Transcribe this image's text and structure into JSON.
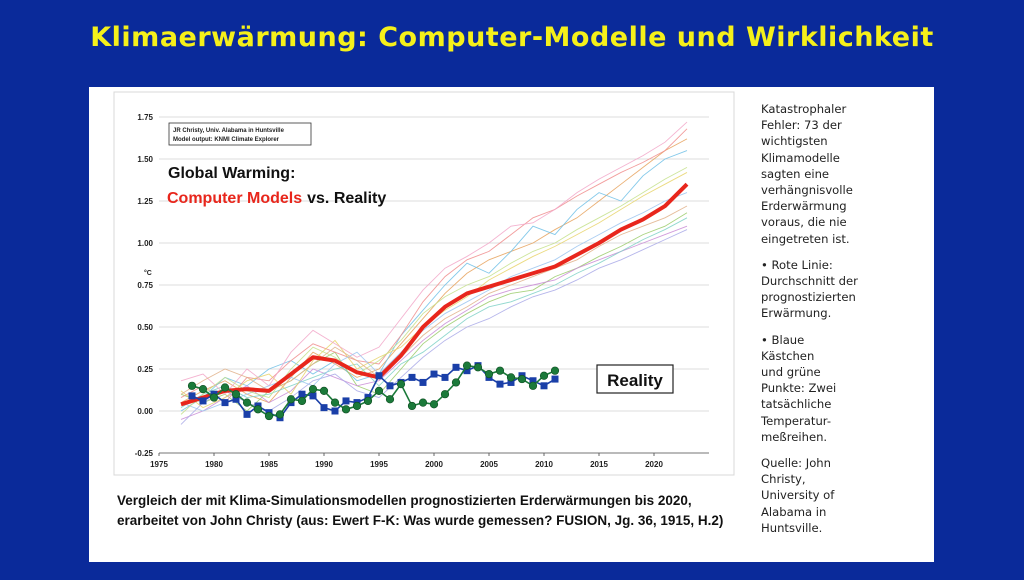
{
  "slide": {
    "title": "Klimaerwärmung: Computer-Modelle und Wirklichkeit"
  },
  "chart_data": {
    "type": "line",
    "source_note": [
      "JR Christy, Univ. Alabama in Huntsville",
      "Model output: KNMI Climate Explorer"
    ],
    "title_line1": "Global Warming:",
    "title_red": "Computer Models",
    "title_rest": "vs. Reality",
    "ylabel": "°C",
    "ylim": [
      -0.25,
      1.75
    ],
    "yticks": [
      "1.75",
      "1.50",
      "1.25",
      "1.00",
      "0.75",
      "0.50",
      "0.25",
      "0.00",
      "-0.25"
    ],
    "yticks_values": [
      1.75,
      1.5,
      1.25,
      1.0,
      0.75,
      0.5,
      0.25,
      0.0,
      -0.25
    ],
    "xlim": [
      1975,
      2025
    ],
    "xticks": [
      "1975",
      "1980",
      "1985",
      "1990",
      "1995",
      "2000",
      "2005",
      "2010",
      "2015",
      "2020"
    ],
    "xticks_values": [
      1975,
      1980,
      1985,
      1990,
      1995,
      2000,
      2005,
      2010,
      2015,
      2020
    ],
    "reality_label": "Reality",
    "series": [
      {
        "name": "Model average (red line)",
        "color": "#e8261c",
        "x": [
          1977,
          1979,
          1981,
          1983,
          1985,
          1987,
          1989,
          1991,
          1993,
          1995,
          1997,
          1999,
          2001,
          2003,
          2005,
          2007,
          2009,
          2011,
          2013,
          2015,
          2017,
          2019,
          2021,
          2023
        ],
        "y": [
          0.04,
          0.08,
          0.12,
          0.13,
          0.12,
          0.22,
          0.32,
          0.3,
          0.23,
          0.2,
          0.33,
          0.5,
          0.62,
          0.7,
          0.74,
          0.78,
          0.82,
          0.86,
          0.93,
          1.0,
          1.08,
          1.14,
          1.22,
          1.35
        ]
      },
      {
        "name": "Balloon observations (blue squares)",
        "color": "#1a3fa8",
        "x": [
          1978,
          1979,
          1980,
          1981,
          1982,
          1983,
          1984,
          1985,
          1986,
          1987,
          1988,
          1989,
          1990,
          1991,
          1992,
          1993,
          1994,
          1995,
          1996,
          1997,
          1998,
          1999,
          2000,
          2001,
          2002,
          2003,
          2004,
          2005,
          2006,
          2007,
          2008,
          2009,
          2010,
          2011
        ],
        "y": [
          0.09,
          0.06,
          0.1,
          0.05,
          0.07,
          -0.02,
          0.03,
          -0.01,
          -0.04,
          0.05,
          0.1,
          0.09,
          0.02,
          0.0,
          0.06,
          0.05,
          0.08,
          0.21,
          0.15,
          0.17,
          0.2,
          0.17,
          0.22,
          0.2,
          0.26,
          0.24,
          0.27,
          0.2,
          0.16,
          0.17,
          0.21,
          0.18,
          0.15,
          0.19
        ]
      },
      {
        "name": "Satellite observations (green dots)",
        "color": "#1b7a3a",
        "x": [
          1978,
          1979,
          1980,
          1981,
          1982,
          1983,
          1984,
          1985,
          1986,
          1987,
          1988,
          1989,
          1990,
          1991,
          1992,
          1993,
          1994,
          1995,
          1996,
          1997,
          1998,
          1999,
          2000,
          2001,
          2002,
          2003,
          2004,
          2005,
          2006,
          2007,
          2008,
          2009,
          2010,
          2011
        ],
        "y": [
          0.15,
          0.13,
          0.08,
          0.14,
          0.1,
          0.05,
          0.01,
          -0.03,
          -0.02,
          0.07,
          0.06,
          0.13,
          0.12,
          0.05,
          0.01,
          0.03,
          0.06,
          0.12,
          0.07,
          0.16,
          0.03,
          0.05,
          0.04,
          0.1,
          0.17,
          0.27,
          0.26,
          0.22,
          0.24,
          0.2,
          0.19,
          0.15,
          0.21,
          0.24
        ]
      }
    ],
    "model_spaghetti": [
      {
        "color": "#e6a15a",
        "y": [
          0.05,
          0.12,
          0.18,
          0.1,
          0.05,
          0.2,
          0.35,
          0.28,
          0.2,
          0.25,
          0.4,
          0.55,
          0.7,
          0.82,
          0.9,
          0.95,
          1.0,
          1.08,
          1.15,
          1.25,
          1.35,
          1.45,
          1.55,
          1.62
        ]
      },
      {
        "color": "#6fbfe6",
        "y": [
          0.0,
          0.08,
          0.2,
          0.15,
          0.25,
          0.3,
          0.22,
          0.3,
          0.18,
          0.22,
          0.45,
          0.6,
          0.75,
          0.88,
          0.82,
          0.95,
          1.1,
          1.05,
          1.2,
          1.3,
          1.25,
          1.4,
          1.5,
          1.55
        ]
      },
      {
        "color": "#9acb6a",
        "y": [
          0.1,
          0.05,
          0.1,
          0.0,
          0.12,
          0.18,
          0.28,
          0.35,
          0.15,
          0.1,
          0.25,
          0.4,
          0.5,
          0.58,
          0.65,
          0.7,
          0.72,
          0.8,
          0.85,
          0.92,
          0.98,
          1.05,
          1.1,
          1.18
        ]
      },
      {
        "color": "#c98bd6",
        "y": [
          -0.05,
          0.0,
          0.08,
          0.15,
          0.05,
          0.12,
          0.25,
          0.2,
          0.15,
          0.18,
          0.3,
          0.42,
          0.52,
          0.6,
          0.68,
          0.72,
          0.75,
          0.78,
          0.85,
          0.9,
          0.95,
          1.0,
          1.05,
          1.1
        ]
      },
      {
        "color": "#f08c8c",
        "y": [
          0.08,
          0.15,
          0.05,
          0.2,
          0.18,
          0.3,
          0.4,
          0.35,
          0.3,
          0.28,
          0.45,
          0.65,
          0.8,
          0.9,
          0.95,
          1.05,
          1.15,
          1.2,
          1.28,
          1.35,
          1.42,
          1.48,
          1.55,
          1.68
        ]
      },
      {
        "color": "#7fd1c7",
        "y": [
          0.02,
          0.1,
          0.15,
          0.08,
          0.1,
          0.15,
          0.2,
          0.25,
          0.28,
          0.15,
          0.28,
          0.35,
          0.45,
          0.55,
          0.62,
          0.65,
          0.7,
          0.75,
          0.82,
          0.88,
          0.95,
          1.02,
          1.08,
          1.15
        ]
      },
      {
        "color": "#e8d46a",
        "y": [
          0.12,
          0.02,
          0.08,
          0.18,
          0.22,
          0.1,
          0.3,
          0.42,
          0.25,
          0.32,
          0.38,
          0.5,
          0.6,
          0.68,
          0.78,
          0.85,
          0.92,
          0.98,
          1.05,
          1.12,
          1.2,
          1.28,
          1.35,
          1.42
        ]
      },
      {
        "color": "#a9a9e8",
        "y": [
          -0.08,
          0.05,
          0.12,
          0.05,
          0.0,
          0.08,
          0.18,
          0.22,
          0.12,
          0.08,
          0.2,
          0.32,
          0.42,
          0.5,
          0.55,
          0.62,
          0.68,
          0.72,
          0.78,
          0.85,
          0.9,
          0.96,
          1.02,
          1.08
        ]
      },
      {
        "color": "#f2a6c8",
        "y": [
          0.18,
          0.22,
          0.1,
          0.25,
          0.15,
          0.35,
          0.48,
          0.4,
          0.32,
          0.38,
          0.55,
          0.72,
          0.85,
          0.92,
          1.0,
          1.1,
          1.12,
          1.2,
          1.3,
          1.38,
          1.45,
          1.52,
          1.6,
          1.72
        ]
      },
      {
        "color": "#9bc4f0",
        "y": [
          0.05,
          0.0,
          0.05,
          0.1,
          0.15,
          0.2,
          0.15,
          0.28,
          0.35,
          0.22,
          0.35,
          0.48,
          0.58,
          0.65,
          0.72,
          0.8,
          0.85,
          0.9,
          0.98,
          1.05,
          1.12,
          1.18,
          1.25,
          1.3
        ]
      },
      {
        "color": "#c4e08a",
        "y": [
          -0.02,
          0.1,
          0.2,
          0.12,
          0.08,
          0.25,
          0.38,
          0.32,
          0.22,
          0.3,
          0.42,
          0.58,
          0.68,
          0.75,
          0.8,
          0.88,
          0.95,
          1.0,
          1.08,
          1.15,
          1.22,
          1.3,
          1.38,
          1.45
        ]
      },
      {
        "color": "#e0b088",
        "y": [
          0.1,
          0.18,
          0.25,
          0.2,
          0.12,
          0.18,
          0.28,
          0.38,
          0.3,
          0.2,
          0.32,
          0.45,
          0.55,
          0.62,
          0.7,
          0.75,
          0.8,
          0.85,
          0.9,
          0.98,
          1.05,
          1.1,
          1.15,
          1.22
        ]
      }
    ]
  },
  "caption": {
    "text": "Vergleich der mit Klima-Simulationsmodellen prognostizierten Erderwärmungen bis 2020, erarbeitet von John Christy (aus:  Ewert F-K: Was wurde gemessen? FUSION, Jg. 36, 1915, H.2)"
  },
  "side_notes": {
    "note1": "Katastrophaler\nFehler: 73 der\nwichtigsten\nKlimamodelle\nsagten eine\nverhängnisvolle\nErderwärmung\nvoraus, die nie\neingetreten ist.",
    "note2": "• Rote Linie:\nDurchschnitt der\nprognostizierten\nErwärmung.",
    "note3": "• Blaue\nKästchen\nund grüne\nPunkte: Zwei\ntatsächliche\nTemperatur-\nmeßreihen.",
    "note4": "Quelle: John\nChristy,\nUniversity of\nAlabama in\nHuntsville."
  }
}
